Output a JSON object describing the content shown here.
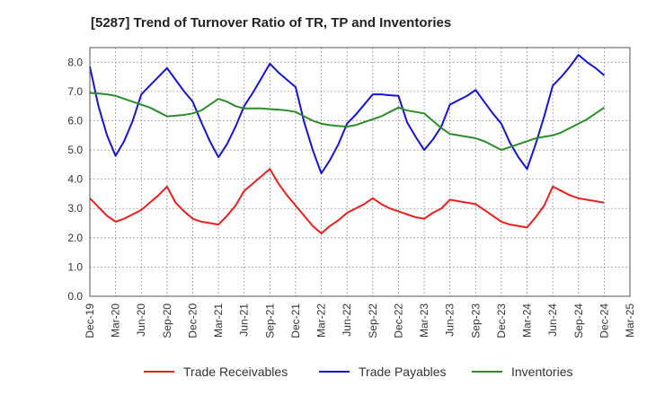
{
  "chart_data": {
    "type": "line",
    "title": "[5287]  Trend of Turnover Ratio of TR, TP and Inventories",
    "xlabel": "",
    "ylabel": "",
    "ylim": [
      0,
      8.5
    ],
    "yticks": [
      "0.0",
      "1.0",
      "2.0",
      "3.0",
      "4.0",
      "5.0",
      "6.0",
      "7.0",
      "8.0"
    ],
    "xticks": [
      "Dec-19",
      "Mar-20",
      "Jun-20",
      "Sep-20",
      "Dec-20",
      "Mar-21",
      "Jun-21",
      "Sep-21",
      "Dec-21",
      "Mar-22",
      "Jun-22",
      "Sep-22",
      "Dec-22",
      "Mar-23",
      "Jun-23",
      "Sep-23",
      "Dec-23",
      "Mar-24",
      "Jun-24",
      "Sep-24",
      "Dec-24",
      "Mar-25"
    ],
    "grid": true,
    "legend_position": "bottom",
    "series": [
      {
        "name": "Trade Receivables",
        "color": "#e8201e",
        "values": [
          3.35,
          3.05,
          2.75,
          2.55,
          2.65,
          2.8,
          2.95,
          3.2,
          3.45,
          3.75,
          3.2,
          2.9,
          2.65,
          2.55,
          2.5,
          2.45,
          2.75,
          3.1,
          3.6,
          3.85,
          4.1,
          4.35,
          3.85,
          3.45,
          3.1,
          2.75,
          2.4,
          2.15,
          2.4,
          2.6,
          2.85,
          3.0,
          3.15,
          3.35,
          3.15,
          3.0,
          2.9,
          2.8,
          2.7,
          2.65,
          2.85,
          3.0,
          3.3,
          3.25,
          3.2,
          3.15,
          2.95,
          2.75,
          2.55,
          2.45,
          2.4,
          2.35,
          2.7,
          3.1,
          3.75,
          3.6,
          3.45,
          3.35,
          3.3,
          3.25,
          3.2
        ]
      },
      {
        "name": "Trade Payables",
        "color": "#1414d2",
        "values": [
          7.85,
          6.5,
          5.5,
          4.8,
          5.3,
          6.0,
          6.9,
          7.2,
          7.5,
          7.8,
          7.4,
          7.0,
          6.65,
          5.95,
          5.3,
          4.75,
          5.2,
          5.8,
          6.5,
          6.95,
          7.45,
          7.95,
          7.65,
          7.4,
          7.15,
          5.95,
          5.0,
          4.2,
          4.65,
          5.2,
          5.9,
          6.2,
          6.55,
          6.9,
          6.9,
          6.87,
          6.85,
          5.95,
          5.45,
          5.0,
          5.35,
          5.8,
          6.55,
          6.7,
          6.85,
          7.05,
          6.65,
          6.25,
          5.9,
          5.25,
          4.75,
          4.35,
          5.2,
          6.15,
          7.2,
          7.5,
          7.85,
          8.25,
          8.0,
          7.8,
          7.55
        ]
      },
      {
        "name": "Inventories",
        "color": "#2a8c2a",
        "values": [
          6.95,
          6.93,
          6.9,
          6.85,
          6.75,
          6.65,
          6.55,
          6.45,
          6.3,
          6.15,
          6.17,
          6.2,
          6.25,
          6.35,
          6.55,
          6.75,
          6.65,
          6.5,
          6.42,
          6.42,
          6.42,
          6.4,
          6.38,
          6.35,
          6.3,
          6.15,
          6.0,
          5.9,
          5.85,
          5.82,
          5.8,
          5.85,
          5.95,
          6.05,
          6.15,
          6.3,
          6.45,
          6.35,
          6.3,
          6.25,
          6.0,
          5.75,
          5.55,
          5.5,
          5.45,
          5.4,
          5.3,
          5.15,
          5.0,
          5.1,
          5.2,
          5.3,
          5.4,
          5.45,
          5.5,
          5.6,
          5.75,
          5.9,
          6.05,
          6.25,
          6.45
        ]
      }
    ]
  }
}
